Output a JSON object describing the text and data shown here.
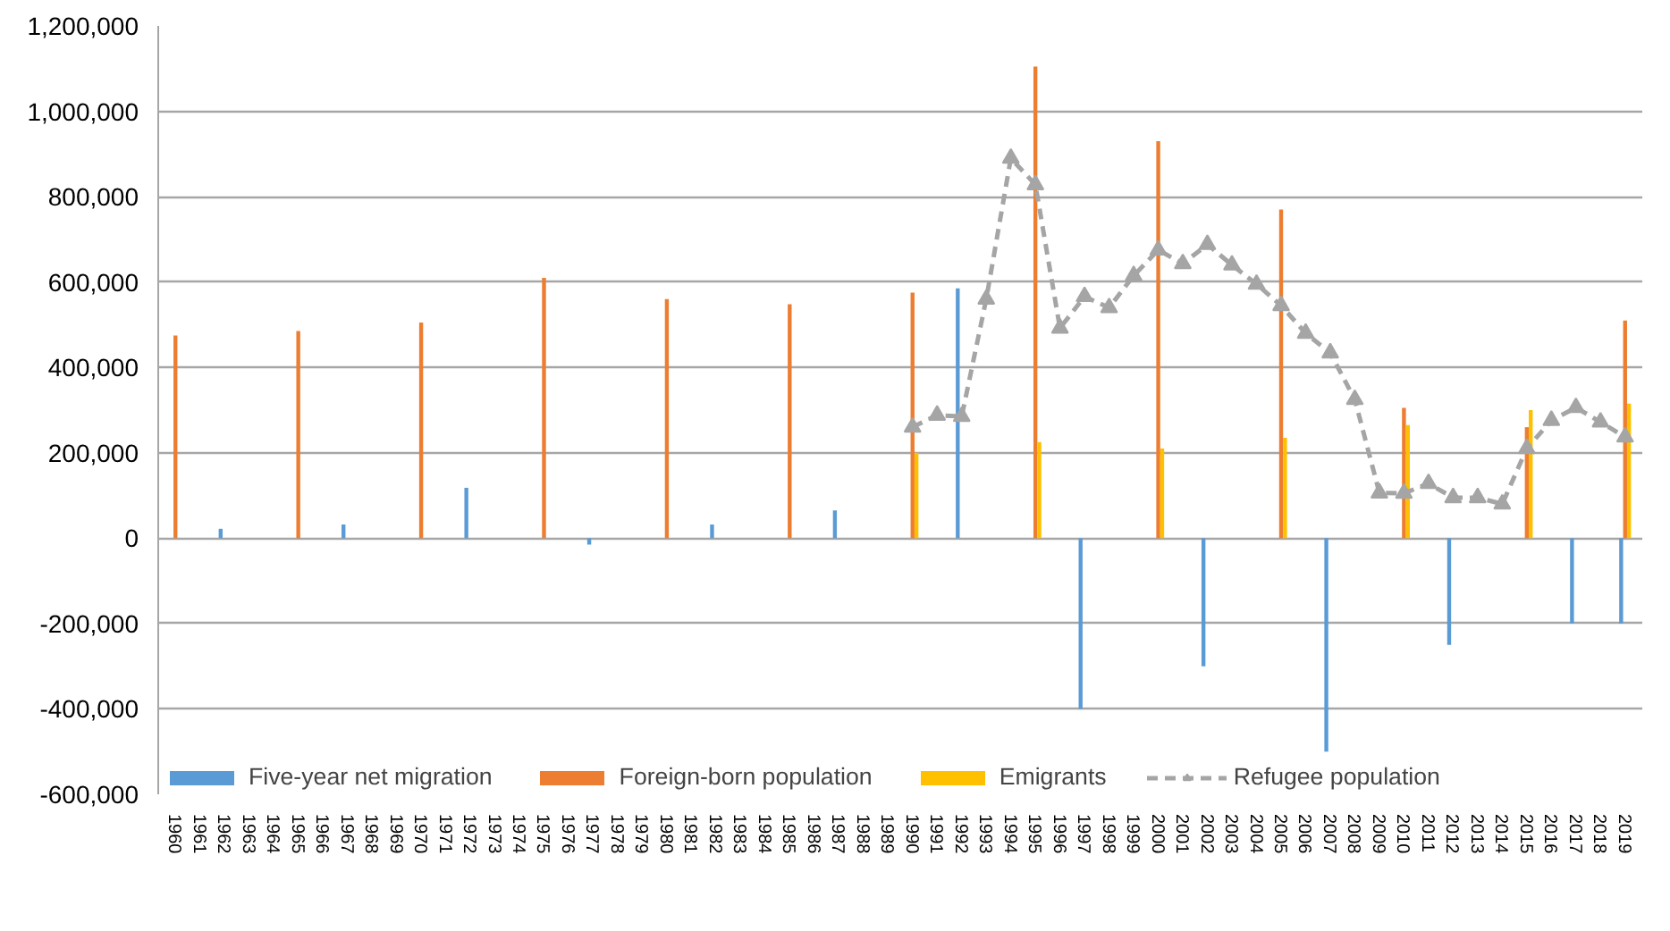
{
  "chart_data": {
    "type": "bar",
    "categories": [
      "1960",
      "1961",
      "1962",
      "1963",
      "1964",
      "1965",
      "1966",
      "1967",
      "1968",
      "1969",
      "1970",
      "1971",
      "1972",
      "1973",
      "1974",
      "1975",
      "1976",
      "1977",
      "1978",
      "1979",
      "1980",
      "1981",
      "1982",
      "1983",
      "1984",
      "1985",
      "1986",
      "1987",
      "1988",
      "1989",
      "1990",
      "1991",
      "1992",
      "1993",
      "1994",
      "1995",
      "1996",
      "1997",
      "1998",
      "1999",
      "2000",
      "2001",
      "2002",
      "2003",
      "2004",
      "2005",
      "2006",
      "2007",
      "2008",
      "2009",
      "2010",
      "2011",
      "2012",
      "2013",
      "2014",
      "2015",
      "2016",
      "2017",
      "2018",
      "2019"
    ],
    "series": [
      {
        "name": "Five-year net migration",
        "color": "#5b9bd5",
        "values": [
          null,
          null,
          22000,
          null,
          null,
          null,
          null,
          32000,
          null,
          null,
          null,
          null,
          118000,
          null,
          null,
          null,
          null,
          -15000,
          null,
          null,
          null,
          null,
          32000,
          null,
          null,
          null,
          null,
          65000,
          null,
          null,
          null,
          null,
          585000,
          null,
          null,
          null,
          null,
          -400000,
          null,
          null,
          null,
          null,
          -300000,
          null,
          null,
          null,
          null,
          -500000,
          null,
          null,
          null,
          null,
          -250000,
          null,
          null,
          null,
          null,
          -200000,
          null,
          -200000
        ]
      },
      {
        "name": "Foreign-born population",
        "color": "#ed7d31",
        "values": [
          475000,
          null,
          null,
          null,
          null,
          485000,
          null,
          null,
          null,
          null,
          505000,
          null,
          null,
          null,
          null,
          610000,
          null,
          null,
          null,
          null,
          560000,
          null,
          null,
          null,
          null,
          548000,
          null,
          null,
          null,
          null,
          575000,
          null,
          null,
          null,
          null,
          1105000,
          null,
          null,
          null,
          null,
          930000,
          null,
          null,
          null,
          null,
          770000,
          null,
          null,
          null,
          null,
          305000,
          null,
          null,
          null,
          null,
          260000,
          null,
          null,
          null,
          510000
        ]
      },
      {
        "name": "Emigrants",
        "color": "#ffc000",
        "values": [
          null,
          null,
          null,
          null,
          null,
          null,
          null,
          null,
          null,
          null,
          null,
          null,
          null,
          null,
          null,
          null,
          null,
          null,
          null,
          null,
          null,
          null,
          null,
          null,
          null,
          null,
          null,
          null,
          null,
          null,
          200000,
          null,
          null,
          null,
          null,
          225000,
          null,
          null,
          null,
          null,
          210000,
          null,
          null,
          null,
          null,
          235000,
          null,
          null,
          null,
          null,
          265000,
          null,
          null,
          null,
          null,
          300000,
          null,
          null,
          null,
          315000
        ]
      },
      {
        "name": "Refugee population",
        "color": "#a5a5a5",
        "type": "line",
        "values": [
          null,
          null,
          null,
          null,
          null,
          null,
          null,
          null,
          null,
          null,
          null,
          null,
          null,
          null,
          null,
          null,
          null,
          null,
          null,
          null,
          null,
          null,
          null,
          null,
          null,
          null,
          null,
          null,
          null,
          null,
          260000,
          288000,
          285000,
          560000,
          890000,
          828000,
          492000,
          566000,
          540000,
          615000,
          675000,
          643000,
          688000,
          640000,
          595000,
          545000,
          480000,
          434000,
          325000,
          106000,
          105000,
          128000,
          95000,
          95000,
          80000,
          210000,
          276000,
          306000,
          272000,
          237000
        ]
      }
    ],
    "marker": "triangle",
    "line_style": "dashed",
    "ylim": [
      -600000,
      1200000
    ],
    "yticks": [
      {
        "value": -600000,
        "label": "-600,000"
      },
      {
        "value": -400000,
        "label": "-400,000"
      },
      {
        "value": -200000,
        "label": "-200,000"
      },
      0,
      {
        "value": 200000,
        "label": "200,000"
      },
      {
        "value": 400000,
        "label": "400,000"
      },
      {
        "value": 600000,
        "label": "600,000"
      },
      {
        "value": 800000,
        "label": "800,000"
      },
      {
        "value": 1000000,
        "label": "1,000,000"
      },
      {
        "value": 1200000,
        "label": "1,200,000"
      }
    ],
    "grid": "y",
    "legend": "bottom"
  }
}
